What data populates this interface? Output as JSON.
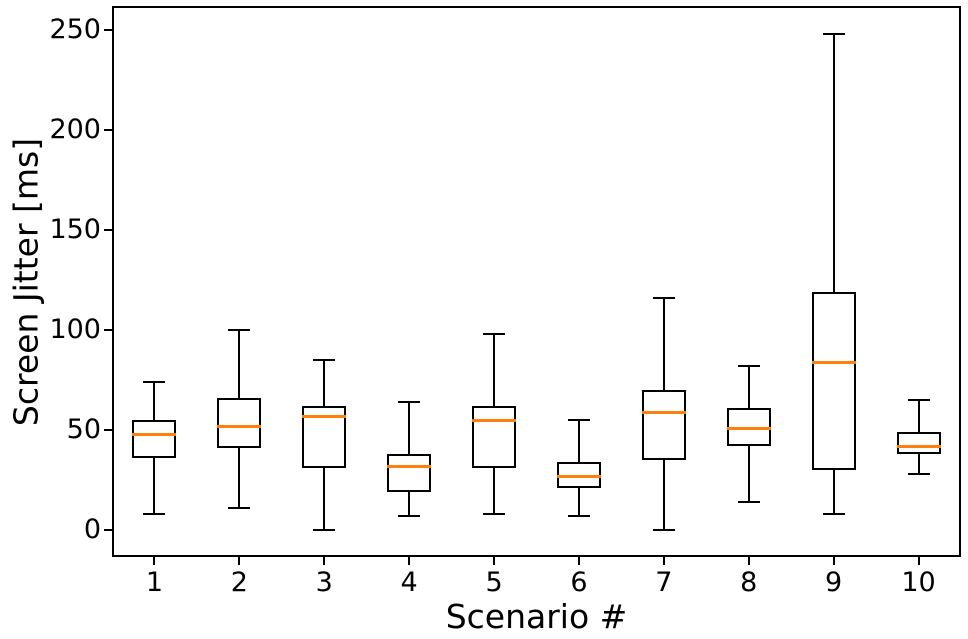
{
  "chart_data": {
    "type": "boxplot",
    "title": "",
    "xlabel": "Scenario #",
    "ylabel": "Screen Jitter [ms]",
    "categories": [
      "1",
      "2",
      "3",
      "4",
      "5",
      "6",
      "7",
      "8",
      "9",
      "10"
    ],
    "yticks": [
      0,
      50,
      100,
      150,
      200,
      250
    ],
    "ylim": [
      -13.5,
      262
    ],
    "xlim": [
      0.5,
      10.5
    ],
    "grid": false,
    "legend": "none",
    "colors": {
      "box": "#000000",
      "whisker": "#000000",
      "median": "#ff7f0e",
      "background": "#ffffff"
    },
    "series": [
      {
        "scenario": "1",
        "whisker_low": 8,
        "q1": 36,
        "median": 48,
        "q3": 55,
        "whisker_high": 74
      },
      {
        "scenario": "2",
        "whisker_low": 11,
        "q1": 41,
        "median": 52,
        "q3": 66,
        "whisker_high": 100
      },
      {
        "scenario": "3",
        "whisker_low": 0,
        "q1": 31,
        "median": 57,
        "q3": 62,
        "whisker_high": 85
      },
      {
        "scenario": "4",
        "whisker_low": 7,
        "q1": 19,
        "median": 32,
        "q3": 38,
        "whisker_high": 64
      },
      {
        "scenario": "5",
        "whisker_low": 8,
        "q1": 31,
        "median": 55,
        "q3": 62,
        "whisker_high": 98
      },
      {
        "scenario": "6",
        "whisker_low": 7,
        "q1": 21,
        "median": 27,
        "q3": 34,
        "whisker_high": 55
      },
      {
        "scenario": "7",
        "whisker_low": 0,
        "q1": 35,
        "median": 59,
        "q3": 70,
        "whisker_high": 116
      },
      {
        "scenario": "8",
        "whisker_low": 14,
        "q1": 42,
        "median": 51,
        "q3": 61,
        "whisker_high": 82
      },
      {
        "scenario": "9",
        "whisker_low": 8,
        "q1": 30,
        "median": 84,
        "q3": 119,
        "whisker_high": 248
      },
      {
        "scenario": "10",
        "whisker_low": 28,
        "q1": 38,
        "median": 42,
        "q3": 49,
        "whisker_high": 65
      }
    ]
  }
}
